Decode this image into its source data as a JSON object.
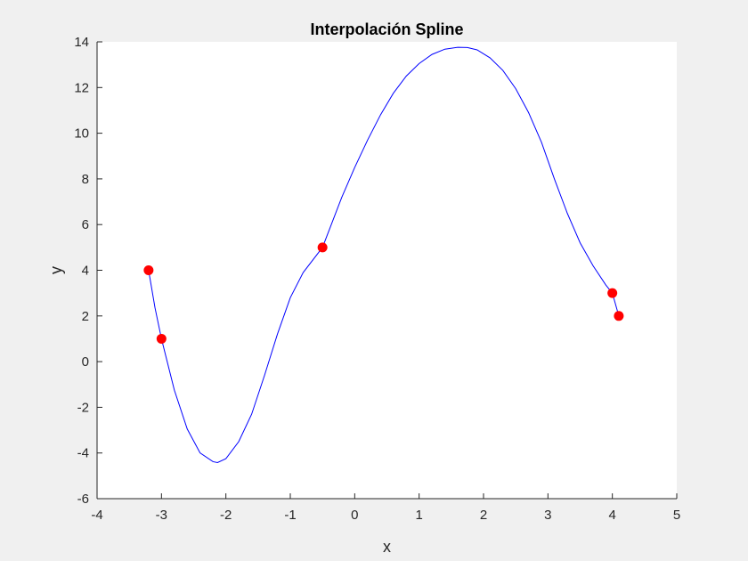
{
  "chart_data": {
    "type": "line",
    "title": "Interpolación Spline",
    "xlabel": "x",
    "ylabel": "y",
    "xlim": [
      -4,
      5
    ],
    "ylim": [
      -6,
      14
    ],
    "xticks": [
      -4,
      -3,
      -2,
      -1,
      0,
      1,
      2,
      3,
      4,
      5
    ],
    "yticks": [
      -6,
      -4,
      -2,
      0,
      2,
      4,
      6,
      8,
      10,
      12,
      14
    ],
    "grid": false,
    "legend": "none",
    "series": [
      {
        "kind": "line",
        "color": "#0000ff",
        "x": [
          -3.2,
          -3.1,
          -3.0,
          -2.8,
          -2.6,
          -2.4,
          -2.2,
          -2.13,
          -2.0,
          -1.8,
          -1.6,
          -1.4,
          -1.2,
          -1.0,
          -0.8,
          -0.5,
          -0.2,
          0.0,
          0.2,
          0.4,
          0.6,
          0.8,
          1.0,
          1.2,
          1.4,
          1.6,
          1.75,
          1.9,
          2.1,
          2.3,
          2.5,
          2.7,
          2.9,
          3.1,
          3.3,
          3.5,
          3.7,
          3.9,
          4.0,
          4.1
        ],
        "y": [
          4.0,
          2.35,
          1.0,
          -1.25,
          -2.95,
          -4.0,
          -4.38,
          -4.42,
          -4.25,
          -3.5,
          -2.3,
          -0.6,
          1.2,
          2.8,
          3.9,
          5.0,
          7.2,
          8.5,
          9.7,
          10.8,
          11.75,
          12.5,
          13.05,
          13.45,
          13.68,
          13.76,
          13.75,
          13.65,
          13.3,
          12.75,
          11.95,
          10.9,
          9.6,
          8.0,
          6.5,
          5.2,
          4.2,
          3.35,
          3.0,
          2.0
        ]
      },
      {
        "kind": "scatter",
        "color": "#ff0000",
        "x": [
          -3.2,
          -3.0,
          -0.5,
          4.0,
          4.1
        ],
        "y": [
          4,
          1,
          5,
          3,
          2
        ]
      }
    ]
  }
}
